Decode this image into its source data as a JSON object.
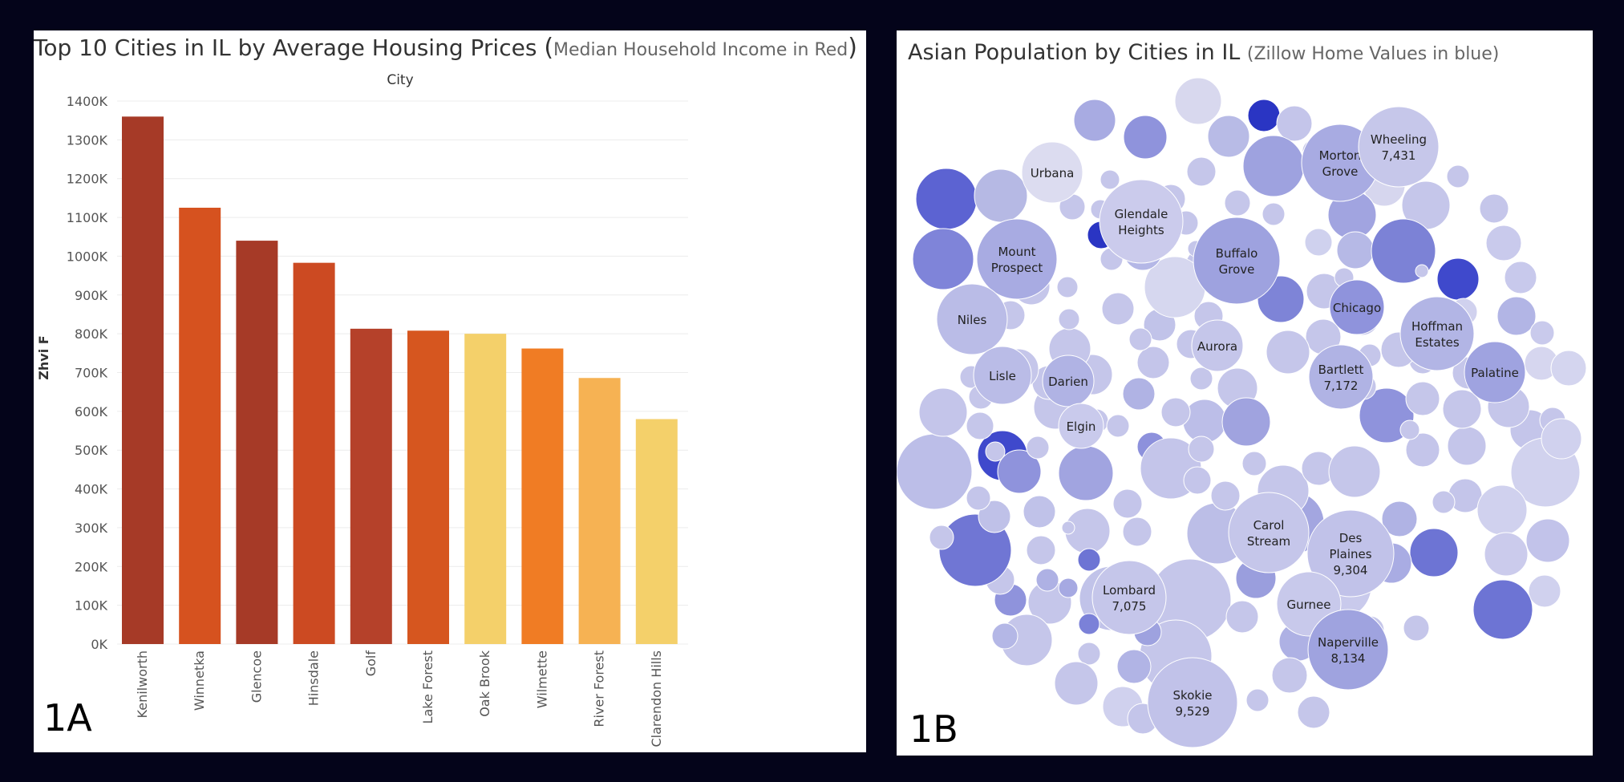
{
  "panel_a": {
    "title_main": "Top 10 Cities in IL by Average Housing Prices ",
    "title_open": "(",
    "title_sub": "Median Household Income in Red",
    "title_close": ")",
    "header_label": "City",
    "y_label": "Zhvi F",
    "tag": "1A"
  },
  "panel_b": {
    "title_main": "Asian Population by Cities in IL ",
    "title_sub": "(Zillow Home Values in blue)",
    "tag": "1B"
  },
  "chart_data": [
    {
      "type": "bar",
      "title": "Top 10 Cities in IL by Average Housing Prices (Median Household Income in Red)",
      "xlabel": "City",
      "ylabel": "Zhvi F",
      "ylim": [
        0,
        1400000
      ],
      "yticks": [
        "0K",
        "100K",
        "200K",
        "300K",
        "400K",
        "500K",
        "600K",
        "700K",
        "800K",
        "900K",
        "1000K",
        "1100K",
        "1200K",
        "1300K",
        "1400K"
      ],
      "grid": true,
      "categories": [
        "Kenilworth",
        "Winnetka",
        "Glencoe",
        "Hinsdale",
        "Golf",
        "Lake Forest",
        "Oak Brook",
        "Wilmette",
        "River Forest",
        "Clarendon Hills"
      ],
      "values": [
        1360000,
        1125000,
        1040000,
        983000,
        813000,
        808000,
        800000,
        762000,
        686000,
        580000
      ],
      "colors": [
        "#a63a27",
        "#d6521f",
        "#a63a27",
        "#cc4a22",
        "#b5412a",
        "#d6561f",
        "#f4d06a",
        "#f07c24",
        "#f6b253",
        "#f4d06a"
      ]
    },
    {
      "type": "bubble",
      "title": "Asian Population by Cities in IL (Zillow Home Values in blue)",
      "labeled": [
        {
          "city": "Urbana",
          "value": ""
        },
        {
          "city": "Glendale Heights",
          "value": ""
        },
        {
          "city": "Morton Grove",
          "value": ""
        },
        {
          "city": "Wheeling",
          "value": "7,431"
        },
        {
          "city": "Mount Prospect",
          "value": ""
        },
        {
          "city": "Buffalo Grove",
          "value": ""
        },
        {
          "city": "Niles",
          "value": ""
        },
        {
          "city": "Chicago",
          "value": ""
        },
        {
          "city": "Hoffman Estates",
          "value": ""
        },
        {
          "city": "Aurora",
          "value": ""
        },
        {
          "city": "Bartlett",
          "value": "7,172"
        },
        {
          "city": "Lisle",
          "value": ""
        },
        {
          "city": "Darien",
          "value": ""
        },
        {
          "city": "Palatine",
          "value": ""
        },
        {
          "city": "Elgin",
          "value": ""
        },
        {
          "city": "Carol Stream",
          "value": ""
        },
        {
          "city": "Des Plaines",
          "value": "9,304"
        },
        {
          "city": "Lombard",
          "value": "7,075"
        },
        {
          "city": "Gurnee",
          "value": ""
        },
        {
          "city": "Naperville",
          "value": "8,134"
        },
        {
          "city": "Skokie",
          "value": "9,529"
        }
      ]
    }
  ]
}
